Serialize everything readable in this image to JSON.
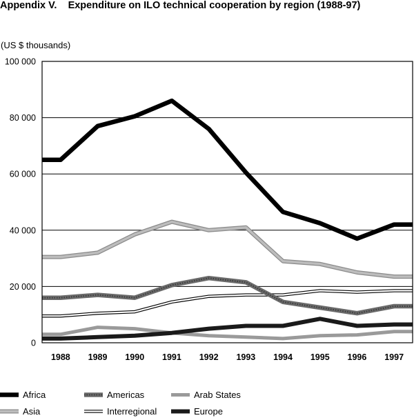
{
  "header": {
    "title": "Appendix V.    Expenditure on ILO technical cooperation by region (1988-97)",
    "units": "(US $ thousands)"
  },
  "chart_data": {
    "type": "line",
    "title": "Appendix V.    Expenditure on ILO technical cooperation by region (1988-97)",
    "ylabel": "(US $ thousands)",
    "xlabel": "",
    "categories": [
      "1988",
      "1989",
      "1990",
      "1991",
      "1992",
      "1993",
      "1994",
      "1995",
      "1996",
      "1997"
    ],
    "yticks": [
      "0",
      "20 000",
      "40 000",
      "60 000",
      "80 000",
      "100 000"
    ],
    "ylim": [
      0,
      100000
    ],
    "grid": "horizontal",
    "legend_position": "bottom",
    "series": [
      {
        "name": "Africa",
        "color": "#000000",
        "style": "solid-heavy",
        "values": [
          65000,
          77000,
          80500,
          86000,
          76000,
          60500,
          46500,
          42500,
          37000,
          42000
        ]
      },
      {
        "name": "Americas",
        "color": "#6a6a6a",
        "style": "textured-dark",
        "values": [
          16000,
          17000,
          16000,
          20500,
          23000,
          21500,
          14500,
          12500,
          10500,
          13000
        ]
      },
      {
        "name": "Arab States",
        "color": "#9a9a9a",
        "style": "solid-medium",
        "values": [
          3000,
          5500,
          5000,
          3500,
          2500,
          2000,
          1500,
          2500,
          2800,
          4000
        ]
      },
      {
        "name": "Asia",
        "color": "#bdbdbd",
        "style": "double-light",
        "values": [
          30500,
          32000,
          38500,
          43000,
          40000,
          41000,
          29000,
          28000,
          25000,
          23500
        ]
      },
      {
        "name": "Interregional",
        "color": "#ffffff",
        "style": "outlined-white",
        "values": [
          9500,
          10500,
          11000,
          14500,
          16500,
          17000,
          17000,
          18500,
          18000,
          18500
        ]
      },
      {
        "name": "Europe",
        "color": "#1a1a1a",
        "style": "solid-dark",
        "values": [
          1500,
          2000,
          2500,
          3500,
          5000,
          6000,
          6000,
          8500,
          6000,
          6500
        ]
      }
    ]
  }
}
